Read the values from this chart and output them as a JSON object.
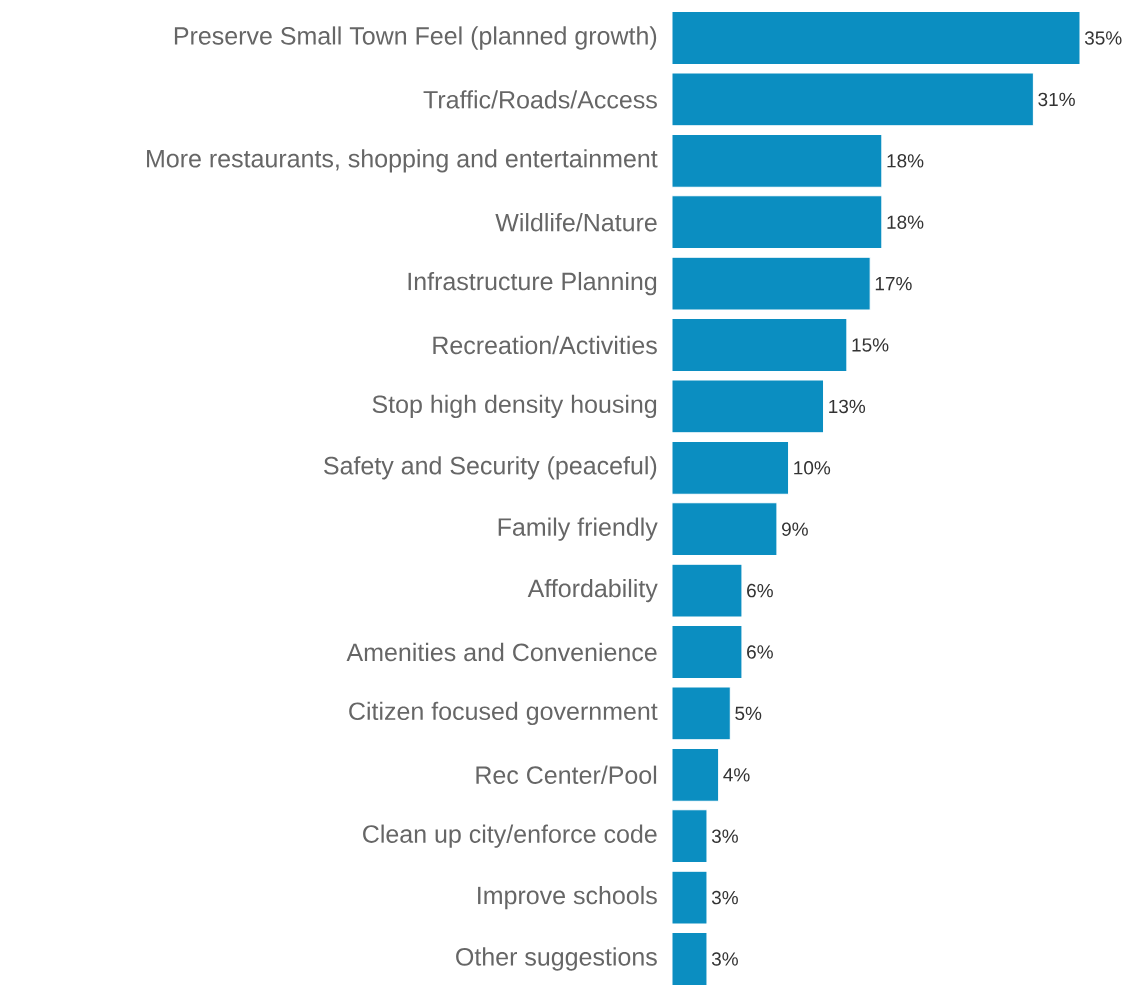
{
  "chart_data": {
    "type": "bar",
    "orientation": "horizontal",
    "categories": [
      "Preserve Small Town Feel (planned growth)",
      "Traffic/Roads/Access",
      "More restaurants, shopping and entertainment",
      "Wildlife/Nature",
      "Infrastructure Planning",
      "Recreation/Activities",
      "Stop high density housing",
      "Safety and Security (peaceful)",
      "Family friendly",
      "Affordability",
      "Amenities and Convenience",
      "Citizen focused government",
      "Rec Center/Pool",
      "Clean up city/enforce code",
      "Improve schools",
      "Other suggestions"
    ],
    "values": [
      35,
      31,
      18,
      18,
      17,
      15,
      13,
      10,
      9,
      6,
      6,
      5,
      4,
      3,
      3,
      3
    ],
    "value_labels": [
      "35%",
      "31%",
      "18%",
      "18%",
      "17%",
      "15%",
      "13%",
      "10%",
      "9%",
      "6%",
      "6%",
      "5%",
      "4%",
      "3%",
      "3%",
      "3%"
    ],
    "color": "#0b8ec1"
  }
}
